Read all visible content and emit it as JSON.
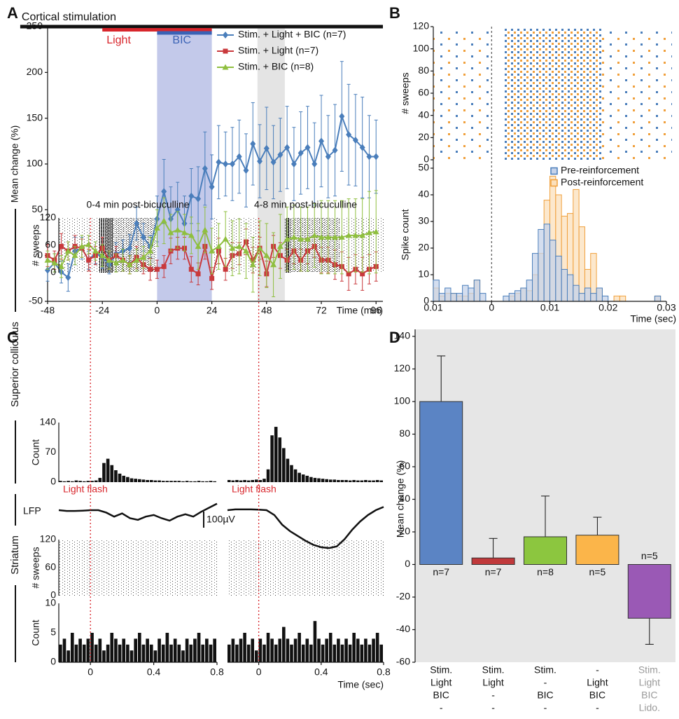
{
  "chart_data": [
    {
      "type": "line",
      "panel": "A",
      "xlabel": "Time (min)",
      "ylabel": "Mean change (%)",
      "xlim": [
        -48,
        99
      ],
      "ylim": [
        -50,
        250
      ],
      "xticks": [
        -48,
        -24,
        0,
        24,
        48,
        72,
        96
      ],
      "yticks": [
        -50,
        0,
        50,
        100,
        150,
        200,
        250
      ],
      "legend": "upper right",
      "bars": [
        {
          "label": "Cortical stimulation",
          "start": -60,
          "end": 99,
          "color": "#111111"
        },
        {
          "label": "Light",
          "start": -24,
          "end": 24,
          "color": "#d8262c"
        },
        {
          "label": "BIC",
          "start": 0,
          "end": 24,
          "color": "#3a62b5"
        }
      ],
      "regions": [
        {
          "start": 0,
          "end": 24,
          "color": "#c3c9ea"
        },
        {
          "start": 44,
          "end": 56,
          "color": "#e4e4e4"
        }
      ],
      "x": [
        -48,
        -45,
        -42,
        -39,
        -36,
        -33,
        -30,
        -27,
        -24,
        -21,
        -18,
        -15,
        -12,
        -9,
        -6,
        -3,
        0,
        3,
        6,
        9,
        12,
        15,
        18,
        21,
        24,
        27,
        30,
        33,
        36,
        39,
        42,
        45,
        48,
        51,
        54,
        57,
        60,
        63,
        66,
        69,
        72,
        75,
        78,
        81,
        84,
        87,
        90,
        93,
        96
      ],
      "series": [
        {
          "name": "Stim. + Light + BIC (n=7)",
          "color": "#4a7ebb",
          "marker": "diamond",
          "values": [
            -16,
            -8,
            -18,
            -24,
            5,
            8,
            -5,
            3,
            -2,
            -10,
            2,
            5,
            8,
            35,
            20,
            10,
            40,
            70,
            40,
            50,
            35,
            65,
            62,
            95,
            75,
            102,
            100,
            100,
            108,
            93,
            122,
            103,
            117,
            102,
            110,
            118,
            100,
            112,
            118,
            100,
            125,
            108,
            115,
            152,
            132,
            126,
            118,
            108,
            108
          ],
          "errors": [
            12,
            10,
            12,
            15,
            15,
            12,
            10,
            12,
            12,
            10,
            12,
            12,
            15,
            18,
            15,
            12,
            25,
            35,
            35,
            30,
            30,
            30,
            35,
            40,
            35,
            40,
            35,
            40,
            40,
            40,
            45,
            40,
            45,
            40,
            40,
            45,
            40,
            45,
            45,
            45,
            50,
            45,
            50,
            60,
            55,
            50,
            55,
            45,
            40
          ]
        },
        {
          "name": "Stim. + Light (n=7)",
          "color": "#c9393c",
          "marker": "square",
          "values": [
            0,
            -5,
            10,
            5,
            10,
            8,
            -5,
            0,
            8,
            -5,
            0,
            -5,
            -10,
            -2,
            -10,
            -15,
            -15,
            -12,
            5,
            8,
            8,
            -15,
            -20,
            10,
            -25,
            5,
            -15,
            0,
            2,
            15,
            -5,
            8,
            -20,
            10,
            0,
            -5,
            5,
            -5,
            5,
            10,
            -5,
            -5,
            -10,
            -12,
            -20,
            -15,
            -20,
            -15,
            -12
          ],
          "errors": [
            12,
            10,
            14,
            10,
            12,
            10,
            12,
            10,
            12,
            10,
            10,
            12,
            10,
            12,
            10,
            12,
            10,
            12,
            14,
            12,
            12,
            14,
            12,
            14,
            12,
            14,
            12,
            14,
            12,
            14,
            14,
            12,
            14,
            12,
            14,
            12,
            14,
            12,
            14,
            12,
            14,
            14,
            16,
            16,
            18,
            16,
            18,
            16,
            16
          ]
        },
        {
          "name": "Stim. + BIC (n=8)",
          "color": "#8fbf3f",
          "marker": "triangle",
          "values": [
            -5,
            -8,
            -12,
            5,
            0,
            10,
            12,
            5,
            0,
            -5,
            -8,
            -5,
            -10,
            -5,
            -2,
            5,
            30,
            38,
            25,
            28,
            25,
            22,
            10,
            28,
            5,
            10,
            18,
            8,
            10,
            5,
            -10,
            8,
            0,
            -10,
            10,
            18,
            20,
            18,
            18,
            22,
            20,
            20,
            20,
            20,
            22,
            22,
            22,
            25,
            26
          ],
          "errors": [
            10,
            10,
            12,
            10,
            10,
            12,
            10,
            10,
            12,
            10,
            10,
            12,
            10,
            12,
            12,
            15,
            20,
            25,
            20,
            20,
            20,
            20,
            25,
            25,
            25,
            25,
            30,
            30,
            30,
            30,
            30,
            30,
            35,
            35,
            35,
            35,
            35,
            35,
            35,
            35,
            40,
            40,
            40,
            40,
            40,
            40,
            40,
            45,
            45
          ]
        }
      ]
    },
    {
      "type": "histogram",
      "panel": "B",
      "xlabel": "Time (sec)",
      "ylabel": "Spike count",
      "raster_ylabel": "# sweeps",
      "raster_ylim": [
        0,
        120
      ],
      "raster_yticks": [
        0,
        20,
        40,
        60,
        80,
        100,
        120
      ],
      "xlim": [
        -0.01,
        0.03
      ],
      "xticks": [
        {
          "value": -0.01,
          "label": "0.01"
        },
        0,
        0.01,
        0.02,
        0.03
      ],
      "ylim": [
        0,
        50
      ],
      "yticks": [
        0,
        10,
        20,
        30,
        40,
        50
      ],
      "legend": "upper right",
      "bins": [
        -0.01,
        -0.009,
        -0.008,
        -0.007,
        -0.006,
        -0.005,
        -0.004,
        -0.003,
        -0.002,
        -0.001,
        0,
        0.001,
        0.002,
        0.003,
        0.004,
        0.005,
        0.006,
        0.007,
        0.008,
        0.009,
        0.01,
        0.011,
        0.012,
        0.013,
        0.014,
        0.015,
        0.016,
        0.017,
        0.018,
        0.019,
        0.02,
        0.021,
        0.022,
        0.023,
        0.024,
        0.025,
        0.026,
        0.027,
        0.028,
        0.029,
        0.03
      ],
      "series": [
        {
          "name": "Pre-reinforcement",
          "color": "#4a7ebb",
          "fill": "#c6d3ea",
          "values": [
            8,
            3,
            5,
            3,
            3,
            6,
            5,
            8,
            3,
            0,
            0,
            0,
            2,
            3,
            4,
            5,
            8,
            18,
            27,
            29,
            23,
            17,
            12,
            10,
            6,
            3,
            5,
            3,
            5,
            2,
            0,
            0,
            0,
            0,
            0,
            0,
            0,
            0,
            2,
            0
          ]
        },
        {
          "name": "Post-reinforcement",
          "color": "#f0a03c",
          "fill": "#fbe0bc",
          "values": [
            5,
            2,
            3,
            3,
            2,
            2,
            3,
            8,
            0,
            0,
            0,
            0,
            0,
            2,
            3,
            5,
            4,
            10,
            18,
            38,
            47,
            40,
            32,
            33,
            42,
            28,
            12,
            18,
            5,
            0,
            0,
            2,
            2,
            0,
            0,
            0,
            0,
            0,
            2,
            0
          ]
        }
      ]
    },
    {
      "type": "psth",
      "panel": "C",
      "xlabel": "Time (sec)",
      "xlim": [
        -0.2,
        0.8
      ],
      "xticks": [
        0,
        0.4,
        0.8
      ],
      "event_label": "Light flash",
      "lfp_label": "LFP",
      "lfp_scale": {
        "value": 100,
        "label": "100µV"
      },
      "regions": [
        {
          "name": "Superior colliculus",
          "raster_ylabel": "# sweeps",
          "raster_ylim": [
            0,
            120
          ],
          "raster_yticks": [
            0,
            60,
            120
          ],
          "count_ylabel": "Count",
          "count_ylim": [
            0,
            140
          ],
          "count_yticks": [
            0,
            70,
            140
          ]
        },
        {
          "name": "Striatum",
          "raster_ylabel": "# sweeps",
          "raster_ylim": [
            0,
            120
          ],
          "raster_yticks": [
            0,
            60,
            120
          ],
          "count_ylabel": "Count",
          "count_ylim": [
            0,
            10
          ],
          "count_yticks": [
            0,
            5,
            10
          ]
        }
      ],
      "bins": [
        -0.2,
        -0.175,
        -0.15,
        -0.125,
        -0.1,
        -0.075,
        -0.05,
        -0.025,
        0,
        0.025,
        0.05,
        0.075,
        0.1,
        0.125,
        0.15,
        0.175,
        0.2,
        0.225,
        0.25,
        0.275,
        0.3,
        0.325,
        0.35,
        0.375,
        0.4,
        0.425,
        0.45,
        0.475,
        0.5,
        0.525,
        0.55,
        0.575,
        0.6,
        0.625,
        0.65,
        0.675,
        0.7,
        0.725,
        0.75,
        0.775,
        0.8
      ],
      "lfp_x": [
        -0.2,
        -0.15,
        -0.1,
        -0.05,
        0,
        0.05,
        0.1,
        0.15,
        0.2,
        0.25,
        0.3,
        0.35,
        0.4,
        0.45,
        0.5,
        0.55,
        0.6,
        0.65,
        0.7,
        0.75,
        0.8
      ],
      "columns": [
        {
          "title": "0-4 min post-bicuculline",
          "sc_counts": [
            3,
            2,
            3,
            2,
            4,
            3,
            2,
            3,
            3,
            4,
            10,
            45,
            55,
            40,
            28,
            20,
            15,
            12,
            9,
            8,
            7,
            6,
            5,
            5,
            4,
            4,
            3,
            3,
            3,
            3,
            3,
            2,
            3,
            2,
            2,
            3,
            2,
            2,
            3,
            2
          ],
          "lfp": [
            0,
            -5,
            -5,
            -3,
            0,
            0,
            -15,
            -40,
            -20,
            -50,
            -60,
            -40,
            -30,
            -50,
            -65,
            -40,
            -25,
            -40,
            -10,
            15,
            40
          ],
          "str_counts": [
            3,
            4,
            2,
            5,
            3,
            4,
            3,
            4,
            5,
            3,
            4,
            2,
            3,
            5,
            4,
            3,
            4,
            3,
            2,
            4,
            5,
            3,
            4,
            3,
            2,
            4,
            3,
            5,
            3,
            4,
            3,
            2,
            4,
            3,
            4,
            5,
            3,
            4,
            3,
            4
          ]
        },
        {
          "title": "4-8 min post-bicuculline",
          "sc_counts": [
            5,
            4,
            5,
            4,
            5,
            4,
            5,
            6,
            5,
            8,
            30,
            110,
            130,
            105,
            80,
            55,
            40,
            30,
            22,
            18,
            15,
            12,
            10,
            9,
            8,
            7,
            6,
            6,
            5,
            5,
            5,
            4,
            5,
            4,
            4,
            5,
            4,
            4,
            5,
            4
          ],
          "lfp": [
            0,
            5,
            5,
            5,
            3,
            0,
            -30,
            -90,
            -130,
            -160,
            -190,
            -215,
            -230,
            -235,
            -225,
            -180,
            -120,
            -70,
            -30,
            0,
            20
          ],
          "str_counts": [
            3,
            4,
            3,
            4,
            5,
            3,
            4,
            2,
            4,
            3,
            5,
            4,
            3,
            4,
            6,
            4,
            3,
            4,
            5,
            3,
            4,
            3,
            7,
            4,
            3,
            4,
            5,
            3,
            4,
            3,
            4,
            3,
            5,
            4,
            3,
            4,
            3,
            4,
            5,
            3
          ]
        }
      ]
    },
    {
      "type": "bar",
      "panel": "D",
      "ylabel": "Mean change (%)",
      "ylim": [
        -60,
        140
      ],
      "yticks": [
        -60,
        -40,
        -20,
        0,
        20,
        40,
        60,
        80,
        100,
        120,
        140
      ],
      "categories": [
        [
          "Stim.",
          "Light",
          "BIC",
          "-"
        ],
        [
          "Stim.",
          "Light",
          "-",
          "-"
        ],
        [
          "Stim.",
          "-",
          "BIC",
          "-"
        ],
        [
          "-",
          "Light",
          "BIC",
          "-"
        ],
        [
          "Stim.",
          "Light",
          "BIC",
          "Lido."
        ]
      ],
      "category_colors": [
        "#111111",
        "#111111",
        "#111111",
        "#111111",
        "#9a9a9a"
      ],
      "values": [
        100,
        4,
        17,
        18,
        -33
      ],
      "errors": [
        28,
        12,
        25,
        11,
        16
      ],
      "colors": [
        "#5b84c4",
        "#c0393b",
        "#8cc63f",
        "#fbb54a",
        "#9a59b5"
      ],
      "n_labels": [
        "n=7",
        "n=7",
        "n=8",
        "n=5",
        "n=5"
      ]
    }
  ]
}
